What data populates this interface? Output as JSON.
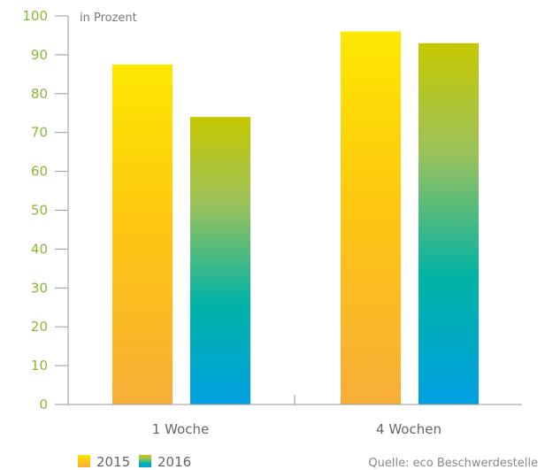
{
  "chart_data": {
    "type": "bar",
    "categories": [
      "1 Woche",
      "4 Wochen"
    ],
    "series": [
      {
        "name": "2015",
        "values": [
          87.5,
          96
        ]
      },
      {
        "name": "2016",
        "values": [
          74,
          93
        ]
      }
    ],
    "unit_note": "in Prozent",
    "ylim": [
      0,
      100
    ],
    "yticks": [
      0,
      10,
      20,
      30,
      40,
      50,
      60,
      70,
      80,
      90,
      100
    ],
    "grid": false,
    "legend": "bottom-left",
    "source": "Quelle: eco Beschwerdestelle",
    "colors": {
      "axis": "#9a9a9a",
      "tick_text": "#8ab833",
      "series_2015": [
        "#fde800",
        "#f8ae38"
      ],
      "series_2016": [
        "#c5c800",
        "#9dc25a",
        "#00b3a5",
        "#00a0e3"
      ]
    }
  }
}
